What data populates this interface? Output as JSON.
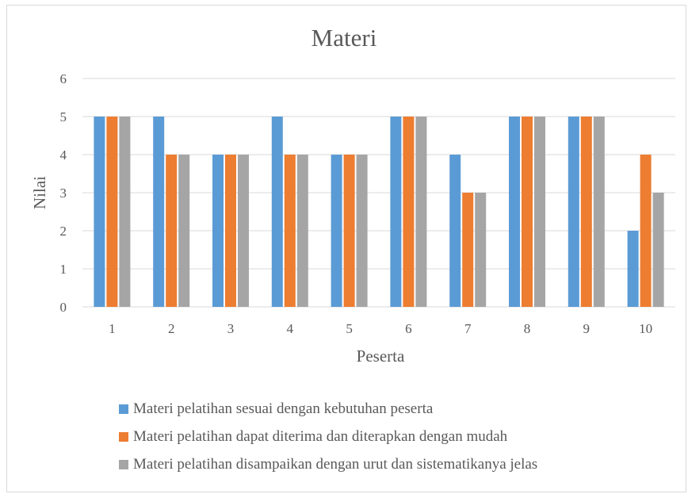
{
  "chart_data": {
    "type": "bar",
    "title": "Materi",
    "xlabel": "Peserta",
    "ylabel": "Nilai",
    "ylim": [
      0,
      6
    ],
    "yticks": [
      0,
      1,
      2,
      3,
      4,
      5,
      6
    ],
    "grid": true,
    "legend_position": "bottom",
    "categories": [
      "1",
      "2",
      "3",
      "4",
      "5",
      "6",
      "7",
      "8",
      "9",
      "10"
    ],
    "series": [
      {
        "name": "Materi pelatihan sesuai dengan kebutuhan peserta",
        "color": "#5b9bd5",
        "values": [
          5,
          5,
          4,
          5,
          4,
          5,
          4,
          5,
          5,
          2
        ]
      },
      {
        "name": "Materi pelatihan dapat diterima dan diterapkan dengan mudah",
        "color": "#ed7d31",
        "values": [
          5,
          4,
          4,
          4,
          4,
          5,
          3,
          5,
          5,
          4
        ]
      },
      {
        "name": "Materi pelatihan disampaikan dengan urut dan sistematikanya jelas",
        "color": "#a5a5a5",
        "values": [
          5,
          4,
          4,
          4,
          4,
          5,
          3,
          5,
          5,
          3
        ]
      }
    ]
  }
}
